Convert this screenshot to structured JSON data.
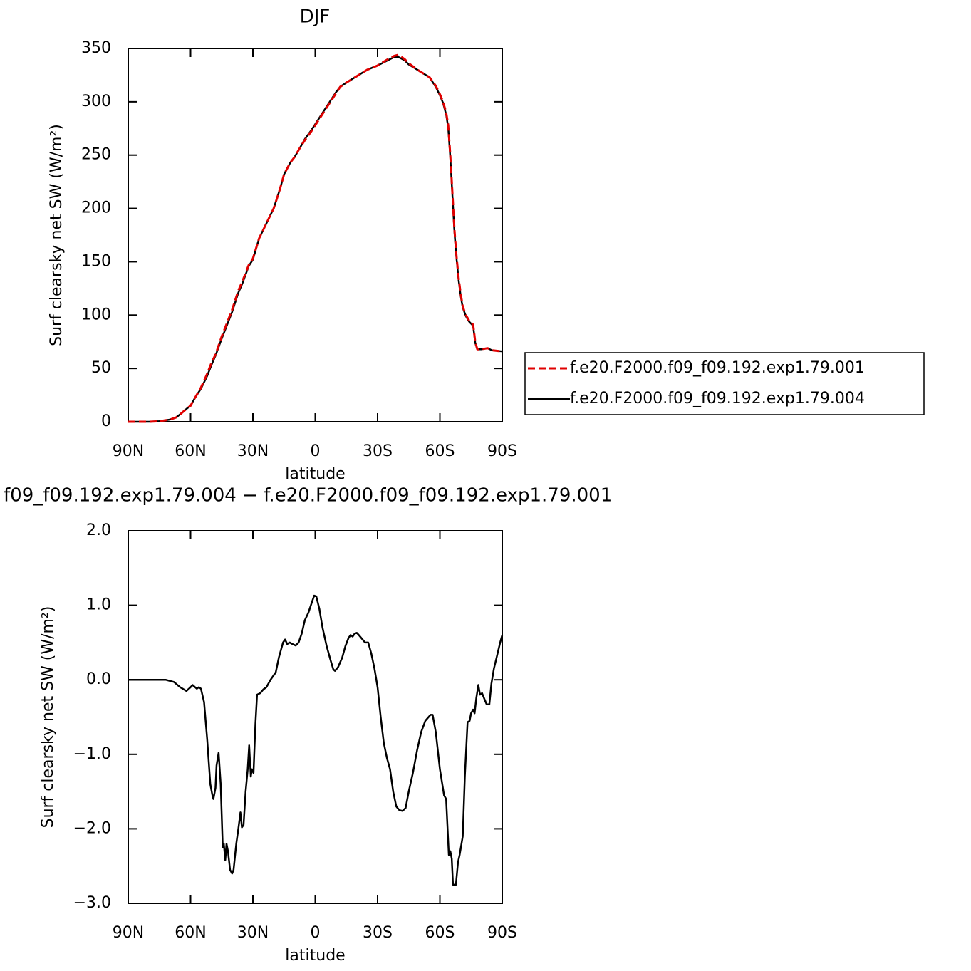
{
  "chart_data": [
    {
      "type": "line",
      "title": "DJF",
      "xlabel": "latitude",
      "ylabel": "Surf clearsky net SW (W/m²)",
      "x": [
        90,
        80,
        75,
        70,
        67,
        65,
        62,
        60,
        58,
        55,
        52,
        50,
        48,
        45,
        42,
        40,
        37,
        35,
        32,
        30,
        27,
        25,
        22,
        20,
        17,
        15,
        12,
        10,
        7,
        5,
        2,
        0,
        -5,
        -10,
        -12,
        -15,
        -20,
        -25,
        -30,
        -35,
        -38,
        -40,
        -43,
        -45,
        -50,
        -55,
        -58,
        -60,
        -61.5,
        -63,
        -64,
        -65,
        -66,
        -67,
        -68,
        -69,
        -70,
        -71,
        -72.5,
        -74,
        -76,
        -77,
        -78,
        -80,
        -83,
        -84,
        -85,
        -90
      ],
      "series": [
        {
          "name": "f.e20.F2000.f09_f09.192.exp1.79.001",
          "color": "#e00000",
          "linestyle": "dashed",
          "values": [
            0,
            0,
            0.5,
            2,
            4,
            7,
            12,
            15,
            22,
            32,
            45,
            55,
            63,
            80,
            95,
            105,
            123,
            132,
            147,
            153,
            172,
            180,
            192,
            200,
            218,
            232,
            243,
            248,
            258,
            264,
            272,
            278,
            293,
            308,
            314,
            318,
            324,
            330,
            334,
            340,
            343,
            344,
            340,
            336,
            329,
            323,
            315,
            307,
            300,
            290,
            278,
            250,
            215,
            180,
            155,
            135,
            120,
            108,
            100,
            95,
            91,
            75,
            68,
            68,
            69,
            68,
            67,
            66
          ]
        },
        {
          "name": "f.e20.F2000.f09_f09.192.exp1.79.004",
          "color": "#000000",
          "linestyle": "solid",
          "values": [
            0,
            0,
            0.5,
            2,
            4,
            7,
            12,
            15,
            22,
            31,
            43,
            53,
            62,
            78,
            93,
            103,
            121,
            130,
            146,
            152,
            172,
            180,
            192,
            200,
            218,
            232,
            243,
            248,
            258,
            265,
            273,
            279,
            294,
            309,
            314,
            318,
            324,
            330,
            334,
            339,
            342,
            342,
            339,
            335,
            329,
            323,
            314,
            306,
            299,
            288,
            276,
            248,
            213,
            178,
            153,
            133,
            118,
            107,
            99,
            94,
            90,
            74,
            68,
            68,
            69,
            68,
            67,
            66
          ]
        }
      ],
      "xlim": [
        90,
        -90
      ],
      "xticks": [
        {
          "value": 90,
          "label": "90N"
        },
        {
          "value": 60,
          "label": "60N"
        },
        {
          "value": 30,
          "label": "30N"
        },
        0,
        {
          "value": -30,
          "label": "30S"
        },
        {
          "value": -60,
          "label": "60S"
        },
        {
          "value": -90,
          "label": "90S"
        }
      ],
      "ylim": [
        0,
        350
      ],
      "yticks": [
        0,
        50,
        100,
        150,
        200,
        250,
        300,
        350
      ],
      "legend": "right"
    },
    {
      "type": "line",
      "title": "f09_f09.192.exp1.79.004 − f.e20.F2000.f09_f09.192.exp1.79.001",
      "xlabel": "latitude",
      "ylabel": "Surf clearsky net SW (W/m²)",
      "x": [
        90,
        80,
        72,
        68,
        65,
        62,
        60,
        59,
        57,
        56,
        55,
        53.5,
        52,
        50.5,
        49.5,
        49,
        48,
        47.5,
        46.5,
        45.5,
        44.5,
        44,
        43.3,
        42.7,
        42,
        41,
        40,
        39.3,
        38,
        37,
        36,
        35.3,
        34.5,
        33.5,
        32.5,
        31.8,
        31,
        30.5,
        29.7,
        28.8,
        28,
        26.5,
        25,
        23.5,
        21.5,
        19,
        17.5,
        15.5,
        14.5,
        13.5,
        12.3,
        11,
        9.4,
        8,
        6.5,
        5,
        3.3,
        1.5,
        0.5,
        -0.5,
        -2,
        -3.5,
        -5.5,
        -7.5,
        -8.7,
        -9.5,
        -11,
        -13,
        -14.5,
        -16,
        -17,
        -18,
        -19,
        -20,
        -21,
        -22.5,
        -24,
        -25.5,
        -27,
        -28.5,
        -30,
        -31.5,
        -33,
        -34.5,
        -36,
        -37.5,
        -39,
        -40.5,
        -42,
        -43.5,
        -45,
        -47,
        -49,
        -51,
        -53,
        -55.5,
        -56.5,
        -58,
        -60,
        -62,
        -63,
        -64.3,
        -65,
        -65.7,
        -66.3,
        -67.7,
        -68.7,
        -69.5,
        -71,
        -72,
        -73.3,
        -74.3,
        -75,
        -76,
        -76.7,
        -77.5,
        -78.5,
        -79.3,
        -80.3,
        -81.3,
        -82.5,
        -83.8,
        -84.8,
        -86,
        -87.3,
        -89,
        -90
      ],
      "values": [
        0,
        0,
        0,
        -0.03,
        -0.1,
        -0.15,
        -0.1,
        -0.07,
        -0.12,
        -0.1,
        -0.12,
        -0.3,
        -0.8,
        -1.4,
        -1.55,
        -1.6,
        -1.45,
        -1.15,
        -0.98,
        -1.4,
        -2.25,
        -2.2,
        -2.42,
        -2.2,
        -2.3,
        -2.55,
        -2.6,
        -2.55,
        -2.2,
        -2.0,
        -1.78,
        -1.98,
        -1.95,
        -1.5,
        -1.2,
        -0.88,
        -1.3,
        -1.2,
        -1.25,
        -0.6,
        -0.2,
        -0.18,
        -0.13,
        -0.1,
        0,
        0.1,
        0.3,
        0.5,
        0.54,
        0.48,
        0.5,
        0.48,
        0.46,
        0.5,
        0.62,
        0.8,
        0.9,
        1.05,
        1.13,
        1.12,
        0.95,
        0.7,
        0.45,
        0.25,
        0.14,
        0.12,
        0.17,
        0.3,
        0.45,
        0.56,
        0.6,
        0.58,
        0.62,
        0.63,
        0.6,
        0.55,
        0.5,
        0.5,
        0.35,
        0.15,
        -0.1,
        -0.5,
        -0.85,
        -1.05,
        -1.2,
        -1.5,
        -1.7,
        -1.75,
        -1.76,
        -1.72,
        -1.5,
        -1.25,
        -0.95,
        -0.7,
        -0.55,
        -0.47,
        -0.47,
        -0.7,
        -1.2,
        -1.55,
        -1.6,
        -2.35,
        -2.3,
        -2.4,
        -2.75,
        -2.75,
        -2.45,
        -2.35,
        -2.1,
        -1.3,
        -0.57,
        -0.55,
        -0.45,
        -0.4,
        -0.45,
        -0.25,
        -0.07,
        -0.2,
        -0.18,
        -0.25,
        -0.33,
        -0.33,
        -0.05,
        0.15,
        0.3,
        0.5,
        0.6
      ],
      "color": "#000000",
      "xlim": [
        90,
        -90
      ],
      "xticks": [
        {
          "value": 90,
          "label": "90N"
        },
        {
          "value": 60,
          "label": "60N"
        },
        {
          "value": 30,
          "label": "30N"
        },
        0,
        {
          "value": -30,
          "label": "30S"
        },
        {
          "value": -60,
          "label": "60S"
        },
        {
          "value": -90,
          "label": "90S"
        }
      ],
      "ylim": [
        -3,
        2
      ],
      "yticks": [
        {
          "value": -3,
          "label": "−3.0"
        },
        {
          "value": -2,
          "label": "−2.0"
        },
        {
          "value": -1,
          "label": "−1.0"
        },
        {
          "value": 0,
          "label": "0.0"
        },
        {
          "value": 1,
          "label": "1.0"
        },
        {
          "value": 2,
          "label": "2.0"
        }
      ]
    }
  ]
}
